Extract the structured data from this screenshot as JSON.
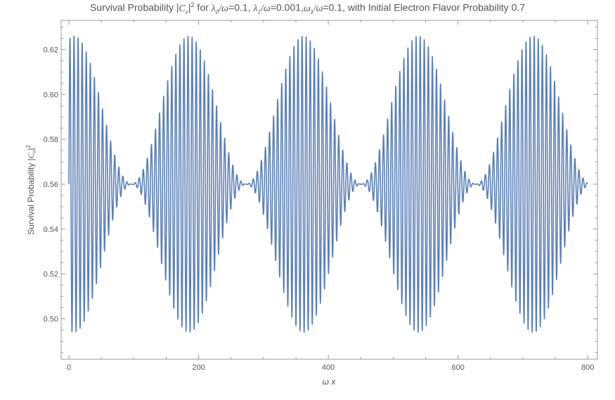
{
  "chart_data": {
    "type": "line",
    "title": "Survival Probability |Cₑ|² for λ₀/ω=0.1, λ₁/ω=0.001,ωλ/ω=0.1, with Initial Electron Flavor Probability 0.7",
    "xlabel": "ω x",
    "ylabel": "Survival Probability |Cₑ|²",
    "xlim": [
      -12,
      815
    ],
    "ylim": [
      0.482,
      0.633
    ],
    "x_ticks": [
      0,
      200,
      400,
      600,
      800
    ],
    "y_ticks": [
      0.5,
      0.52,
      0.54,
      0.56,
      0.58,
      0.6,
      0.62
    ],
    "x_tick_labels": [
      "0",
      "200",
      "400",
      "600",
      "800"
    ],
    "y_tick_labels": [
      "0.50",
      "0.52",
      "0.54",
      "0.56",
      "0.58",
      "0.60",
      "0.62"
    ],
    "grid": false,
    "legend": "none",
    "series": [
      {
        "color": "#5b7fb6",
        "x_range": [
          0,
          800
        ],
        "fast_period": 6.28,
        "envelope_period": 177,
        "envelope_peaks_x": [
          8,
          178,
          355,
          532,
          710
        ],
        "envelope_troughs_x": [
          90,
          265,
          445,
          620,
          800
        ],
        "upper_envelope_range": [
          0.56,
          0.626
        ],
        "lower_envelope_range": [
          0.494,
          0.56
        ]
      }
    ]
  }
}
